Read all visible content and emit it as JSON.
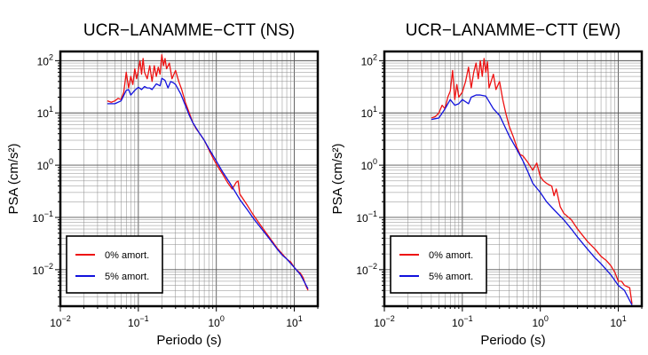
{
  "chart_data": [
    {
      "type": "line",
      "title": "UCR−LANAMME−CTT (NS)",
      "xlabel": "Periodo (s)",
      "ylabel": "PSA (cm/s²)",
      "xscale": "log",
      "yscale": "log",
      "xlim": [
        0.01,
        20
      ],
      "ylim": [
        0.002,
        150
      ],
      "grid": true,
      "legend_position": "bottom-left",
      "x_tick_labels": [
        "10−2",
        "10−1",
        "10⁰",
        "10¹"
      ],
      "y_tick_labels": [
        "10−2",
        "10−1",
        "10⁰",
        "10¹",
        "10²"
      ],
      "series": [
        {
          "name": "0% amort.",
          "color": "#ee1111",
          "x": [
            0.04,
            0.045,
            0.05,
            0.055,
            0.06,
            0.065,
            0.07,
            0.075,
            0.08,
            0.085,
            0.09,
            0.095,
            0.1,
            0.105,
            0.11,
            0.115,
            0.12,
            0.13,
            0.14,
            0.15,
            0.16,
            0.17,
            0.18,
            0.19,
            0.2,
            0.21,
            0.22,
            0.23,
            0.25,
            0.27,
            0.3,
            0.33,
            0.36,
            0.4,
            0.45,
            0.5,
            0.55,
            0.6,
            0.7,
            0.8,
            0.9,
            1.0,
            1.2,
            1.4,
            1.6,
            1.8,
            1.9,
            2.0,
            2.5,
            3.0,
            4.0,
            5.0,
            6.0,
            7.0,
            8.0,
            9.0,
            10.0,
            11.0,
            12.0,
            13.0,
            14.0,
            15.0
          ],
          "y": [
            17,
            16,
            17,
            19,
            18,
            25,
            60,
            30,
            50,
            35,
            70,
            45,
            65,
            100,
            55,
            110,
            60,
            45,
            80,
            40,
            80,
            50,
            75,
            55,
            130,
            80,
            110,
            70,
            90,
            45,
            65,
            40,
            28,
            16,
            10,
            6.5,
            5.0,
            4.2,
            3.0,
            2.0,
            1.4,
            1.05,
            0.68,
            0.46,
            0.35,
            0.47,
            0.5,
            0.28,
            0.17,
            0.11,
            0.06,
            0.038,
            0.026,
            0.02,
            0.016,
            0.014,
            0.011,
            0.0095,
            0.0085,
            0.007,
            0.005,
            0.004
          ]
        },
        {
          "name": "5% amort.",
          "color": "#1111dd",
          "x": [
            0.04,
            0.05,
            0.06,
            0.07,
            0.075,
            0.08,
            0.09,
            0.1,
            0.11,
            0.12,
            0.13,
            0.14,
            0.15,
            0.17,
            0.19,
            0.2,
            0.22,
            0.24,
            0.26,
            0.28,
            0.3,
            0.35,
            0.4,
            0.45,
            0.5,
            0.6,
            0.7,
            0.8,
            1.0,
            1.2,
            1.5,
            2.0,
            2.5,
            3.0,
            4.0,
            5.0,
            6.0,
            7.0,
            8.0,
            10.0,
            12.0,
            15.0
          ],
          "y": [
            15,
            15,
            17,
            27,
            28,
            22,
            27,
            31,
            28,
            32,
            30,
            30,
            28,
            36,
            33,
            46,
            42,
            30,
            40,
            38,
            35,
            23,
            14,
            9,
            6.5,
            4.2,
            3.0,
            2.1,
            1.2,
            0.75,
            0.45,
            0.22,
            0.14,
            0.095,
            0.055,
            0.036,
            0.025,
            0.019,
            0.016,
            0.011,
            0.008,
            0.0043
          ]
        }
      ]
    },
    {
      "type": "line",
      "title": "UCR−LANAMME−CTT (EW)",
      "xlabel": "Periodo (s)",
      "ylabel": "PSA (cm/s²)",
      "xscale": "log",
      "yscale": "log",
      "xlim": [
        0.01,
        20
      ],
      "ylim": [
        0.002,
        150
      ],
      "grid": true,
      "legend_position": "bottom-left",
      "x_tick_labels": [
        "10−2",
        "10−1",
        "10⁰",
        "10¹"
      ],
      "y_tick_labels": [
        "10−2",
        "10−1",
        "10⁰",
        "10¹",
        "10²"
      ],
      "series": [
        {
          "name": "0% amort.",
          "color": "#ee1111",
          "x": [
            0.04,
            0.045,
            0.05,
            0.055,
            0.06,
            0.065,
            0.07,
            0.075,
            0.08,
            0.085,
            0.09,
            0.1,
            0.11,
            0.12,
            0.13,
            0.14,
            0.15,
            0.16,
            0.17,
            0.18,
            0.19,
            0.2,
            0.21,
            0.22,
            0.25,
            0.27,
            0.3,
            0.33,
            0.36,
            0.4,
            0.45,
            0.5,
            0.55,
            0.6,
            0.7,
            0.8,
            0.9,
            1.0,
            1.1,
            1.2,
            1.3,
            1.4,
            1.5,
            1.6,
            1.8,
            2.0,
            2.5,
            3.0,
            4.0,
            5.0,
            6.0,
            7.0,
            8.0,
            9.0,
            10.0,
            11.0,
            12.0,
            14.0,
            15.0
          ],
          "y": [
            8,
            8.5,
            10,
            14,
            12,
            20,
            26,
            65,
            18,
            35,
            20,
            25,
            40,
            75,
            30,
            60,
            90,
            45,
            100,
            50,
            110,
            60,
            95,
            30,
            55,
            28,
            40,
            18,
            10,
            5.5,
            3.5,
            2.2,
            1.6,
            1.5,
            1.1,
            0.8,
            1.1,
            0.6,
            0.5,
            0.45,
            0.42,
            0.4,
            0.26,
            0.35,
            0.16,
            0.12,
            0.09,
            0.06,
            0.035,
            0.025,
            0.018,
            0.015,
            0.012,
            0.009,
            0.006,
            0.006,
            0.005,
            0.0045,
            0.0022
          ]
        },
        {
          "name": "5% amort.",
          "color": "#1111dd",
          "x": [
            0.04,
            0.05,
            0.06,
            0.07,
            0.08,
            0.09,
            0.1,
            0.12,
            0.13,
            0.15,
            0.17,
            0.2,
            0.25,
            0.28,
            0.3,
            0.35,
            0.4,
            0.5,
            0.6,
            0.7,
            0.8,
            1.0,
            1.2,
            1.5,
            2.0,
            2.5,
            3.0,
            4.0,
            5.0,
            6.0,
            7.0,
            8.0,
            10.0,
            12.0,
            15.0
          ],
          "y": [
            7.5,
            8,
            12,
            18,
            14,
            15,
            18,
            15,
            20,
            22,
            22,
            21,
            12,
            10,
            9,
            5.5,
            3.6,
            2.0,
            1.2,
            0.72,
            0.45,
            0.3,
            0.2,
            0.14,
            0.09,
            0.06,
            0.042,
            0.025,
            0.017,
            0.013,
            0.01,
            0.008,
            0.005,
            0.004,
            0.0021
          ]
        }
      ]
    }
  ]
}
